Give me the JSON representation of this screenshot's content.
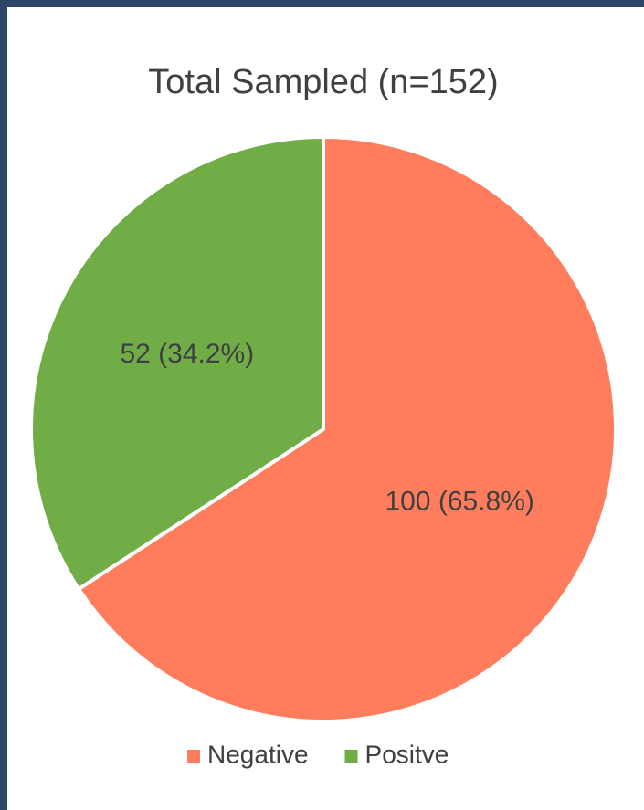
{
  "chart_data": {
    "type": "pie",
    "title": "Total Sampled (n=152)",
    "categories": [
      "Negative",
      "Positve"
    ],
    "values": [
      100,
      52
    ],
    "value_labels": [
      "100 (65.8%)",
      "52 (34.2%)"
    ],
    "colors": [
      "#ff7c5c",
      "#70ad47"
    ],
    "legend": "bottom"
  }
}
